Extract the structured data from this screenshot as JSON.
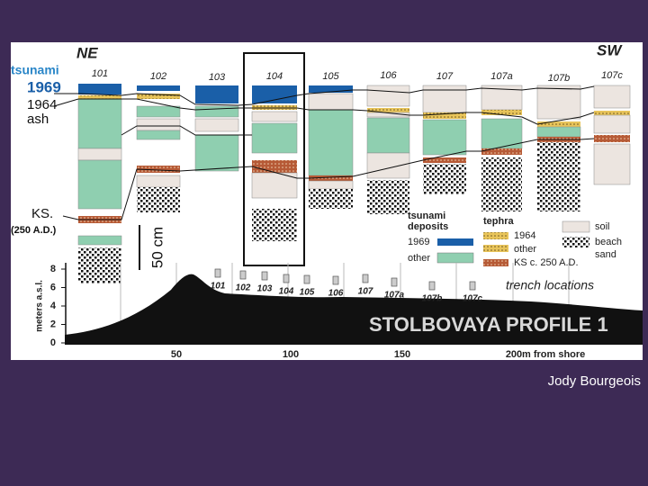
{
  "header": {
    "ne": "NE",
    "sw": "SW"
  },
  "columns": [
    "101",
    "102",
    "103",
    "104",
    "105",
    "106",
    "107",
    "107a",
    "107b",
    "107c"
  ],
  "left_labels": {
    "tsunami": "tsunami",
    "year_1969": "1969",
    "year_1964": "1964",
    "ash": "ash",
    "ks": "KS.",
    "ks_date": "(250 A.D.)"
  },
  "scale": "50 cm",
  "legend": {
    "tsunami_deposits": [
      "tsunami",
      "deposits"
    ],
    "t1969": "1969",
    "t_other": "other",
    "tephra": "tephra",
    "e1964": "1964",
    "e_other": "other",
    "ks": "KS c. 250 A.D.",
    "soil": "soil",
    "beach_sand": [
      "beach",
      "sand"
    ]
  },
  "profile": {
    "y_label": "meters a.s.l.",
    "y_ticks": [
      "0",
      "2",
      "4",
      "6",
      "8"
    ],
    "x_ticks": [
      "50",
      "100",
      "150",
      "200"
    ],
    "x_label": "m from shore",
    "trenches": [
      "101",
      "102",
      "103",
      "104",
      "105",
      "106",
      "107",
      "107a",
      "107b",
      "107c"
    ],
    "trench_label": "trench locations",
    "title": "STOLBOVAYA PROFILE 1"
  },
  "credit": "Jody Bourgeois"
}
